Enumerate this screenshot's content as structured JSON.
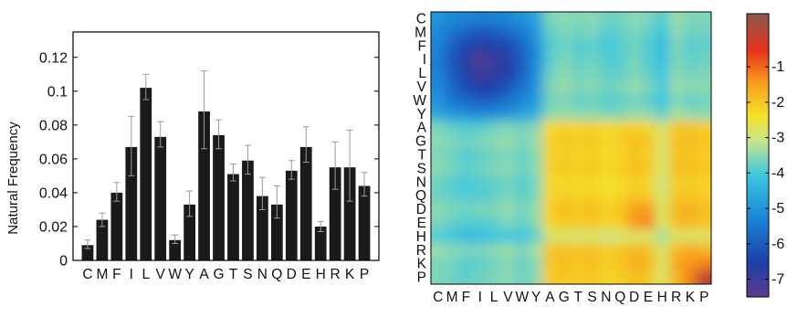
{
  "chart_data": [
    {
      "type": "bar",
      "ylabel": "Natural Frequency",
      "xlabel": "",
      "title": "",
      "ylim": [
        0,
        0.135
      ],
      "yticks": [
        "0",
        "0.02",
        "0.04",
        "0.06",
        "0.08",
        "0.1",
        "0.12"
      ],
      "categories": [
        "C",
        "M",
        "F",
        "I",
        "L",
        "V",
        "W",
        "Y",
        "A",
        "G",
        "T",
        "S",
        "N",
        "Q",
        "D",
        "E",
        "H",
        "R",
        "K",
        "P"
      ],
      "values": [
        0.009,
        0.024,
        0.04,
        0.067,
        0.102,
        0.073,
        0.012,
        0.033,
        0.088,
        0.074,
        0.051,
        0.059,
        0.038,
        0.033,
        0.053,
        0.067,
        0.02,
        0.055,
        0.055,
        0.044
      ],
      "error_low": [
        0.007,
        0.02,
        0.035,
        0.05,
        0.095,
        0.067,
        0.01,
        0.026,
        0.066,
        0.066,
        0.047,
        0.051,
        0.03,
        0.025,
        0.048,
        0.058,
        0.017,
        0.042,
        0.035,
        0.038
      ],
      "error_high": [
        0.012,
        0.028,
        0.046,
        0.085,
        0.11,
        0.082,
        0.015,
        0.041,
        0.112,
        0.083,
        0.057,
        0.068,
        0.049,
        0.044,
        0.059,
        0.079,
        0.023,
        0.07,
        0.077,
        0.052
      ],
      "grid": false,
      "bar_color": "#1a1a1a"
    },
    {
      "type": "heatmap",
      "rows": [
        "C",
        "M",
        "F",
        "I",
        "L",
        "V",
        "W",
        "Y",
        "A",
        "G",
        "T",
        "S",
        "N",
        "Q",
        "D",
        "E",
        "H",
        "R",
        "K",
        "P"
      ],
      "cols": [
        "C",
        "M",
        "F",
        "I",
        "L",
        "V",
        "W",
        "Y",
        "A",
        "G",
        "T",
        "S",
        "N",
        "Q",
        "D",
        "E",
        "H",
        "R",
        "K",
        "P"
      ],
      "colorbar": {
        "min": -7.5,
        "max": 0.5,
        "ticks": [
          "-1",
          "-2",
          "-3",
          "-4",
          "-5",
          "-6",
          "-7"
        ]
      },
      "colormap": "jet",
      "values": [
        [
          -5.0,
          -5.2,
          -5.3,
          -5.4,
          -5.3,
          -5.2,
          -5.0,
          -4.7,
          -3.6,
          -3.5,
          -3.6,
          -3.5,
          -3.7,
          -3.7,
          -3.5,
          -3.6,
          -3.9,
          -3.4,
          -3.6,
          -3.6
        ],
        [
          -5.2,
          -5.6,
          -5.9,
          -6.1,
          -6.0,
          -5.8,
          -5.5,
          -5.0,
          -3.8,
          -3.6,
          -3.7,
          -3.6,
          -3.9,
          -3.8,
          -3.6,
          -3.8,
          -4.1,
          -3.5,
          -3.7,
          -3.7
        ],
        [
          -5.3,
          -5.9,
          -6.4,
          -6.7,
          -6.6,
          -6.3,
          -5.8,
          -5.1,
          -3.9,
          -3.7,
          -3.9,
          -3.8,
          -4.0,
          -3.9,
          -3.7,
          -3.9,
          -4.3,
          -3.6,
          -3.9,
          -3.8
        ],
        [
          -5.4,
          -6.1,
          -6.7,
          -7.3,
          -7.0,
          -6.6,
          -6.0,
          -5.2,
          -3.9,
          -3.6,
          -3.8,
          -3.7,
          -3.9,
          -3.9,
          -3.6,
          -3.9,
          -4.2,
          -3.6,
          -3.8,
          -3.7
        ],
        [
          -5.3,
          -6.0,
          -6.6,
          -7.0,
          -6.9,
          -6.5,
          -5.9,
          -5.1,
          -3.7,
          -3.5,
          -3.7,
          -3.6,
          -3.8,
          -3.8,
          -3.6,
          -3.8,
          -4.1,
          -3.5,
          -3.7,
          -3.6
        ],
        [
          -5.2,
          -5.8,
          -6.3,
          -6.6,
          -6.5,
          -6.1,
          -5.6,
          -5.0,
          -3.6,
          -3.4,
          -3.6,
          -3.5,
          -3.7,
          -3.6,
          -3.4,
          -3.6,
          -4.0,
          -3.4,
          -3.5,
          -3.5
        ],
        [
          -5.0,
          -5.5,
          -5.8,
          -6.0,
          -5.9,
          -5.6,
          -5.3,
          -4.8,
          -3.7,
          -3.6,
          -3.8,
          -3.7,
          -3.9,
          -3.8,
          -3.7,
          -3.8,
          -4.1,
          -3.6,
          -3.8,
          -3.7
        ],
        [
          -4.7,
          -5.0,
          -5.1,
          -5.2,
          -5.1,
          -5.0,
          -4.8,
          -4.5,
          -3.5,
          -3.4,
          -3.5,
          -3.5,
          -3.6,
          -3.6,
          -3.4,
          -3.5,
          -3.8,
          -3.3,
          -3.5,
          -3.5
        ],
        [
          -3.6,
          -3.8,
          -3.9,
          -3.9,
          -3.7,
          -3.6,
          -3.7,
          -3.5,
          -2.3,
          -2.1,
          -2.2,
          -2.1,
          -2.3,
          -2.2,
          -2.1,
          -2.2,
          -2.9,
          -2.0,
          -2.0,
          -2.1
        ],
        [
          -3.5,
          -3.6,
          -3.7,
          -3.6,
          -3.5,
          -3.4,
          -3.6,
          -3.4,
          -2.1,
          -2.0,
          -2.1,
          -2.0,
          -2.2,
          -2.1,
          -1.9,
          -2.0,
          -2.8,
          -1.9,
          -1.9,
          -2.0
        ],
        [
          -3.6,
          -3.7,
          -3.9,
          -3.8,
          -3.7,
          -3.6,
          -3.8,
          -3.5,
          -2.2,
          -2.1,
          -2.2,
          -2.1,
          -2.3,
          -2.2,
          -2.0,
          -2.1,
          -2.9,
          -2.0,
          -2.0,
          -2.1
        ],
        [
          -3.5,
          -3.6,
          -3.8,
          -3.7,
          -3.6,
          -3.5,
          -3.7,
          -3.5,
          -2.1,
          -2.0,
          -2.1,
          -2.0,
          -2.2,
          -2.1,
          -1.9,
          -2.0,
          -2.8,
          -1.9,
          -1.9,
          -2.0
        ],
        [
          -3.7,
          -3.9,
          -4.0,
          -3.9,
          -3.8,
          -3.7,
          -3.9,
          -3.6,
          -2.3,
          -2.2,
          -2.3,
          -2.2,
          -2.4,
          -2.3,
          -2.1,
          -2.2,
          -3.0,
          -2.1,
          -2.1,
          -2.2
        ],
        [
          -3.7,
          -3.8,
          -3.9,
          -3.9,
          -3.8,
          -3.6,
          -3.8,
          -3.6,
          -2.2,
          -2.1,
          -2.2,
          -2.1,
          -2.3,
          -2.2,
          -2.0,
          -2.1,
          -2.9,
          -2.0,
          -2.0,
          -2.1
        ],
        [
          -3.5,
          -3.6,
          -3.7,
          -3.6,
          -3.6,
          -3.4,
          -3.7,
          -3.4,
          -2.1,
          -1.9,
          -2.0,
          -1.9,
          -2.1,
          -2.0,
          -1.5,
          -1.4,
          -2.8,
          -1.8,
          -1.7,
          -1.9
        ],
        [
          -3.6,
          -3.8,
          -3.9,
          -3.9,
          -3.8,
          -3.6,
          -3.8,
          -3.5,
          -2.2,
          -2.0,
          -2.1,
          -2.0,
          -2.2,
          -2.1,
          -1.4,
          -1.3,
          -2.8,
          -1.9,
          -1.8,
          -2.0
        ],
        [
          -3.9,
          -4.1,
          -4.3,
          -4.2,
          -4.1,
          -4.0,
          -4.1,
          -3.8,
          -2.9,
          -2.8,
          -2.9,
          -2.8,
          -3.0,
          -2.9,
          -2.8,
          -2.8,
          -3.3,
          -2.8,
          -2.8,
          -2.8
        ],
        [
          -3.4,
          -3.5,
          -3.6,
          -3.6,
          -3.5,
          -3.4,
          -3.6,
          -3.3,
          -2.0,
          -1.9,
          -2.0,
          -1.9,
          -2.1,
          -2.0,
          -1.8,
          -1.9,
          -2.8,
          -1.8,
          -1.6,
          -1.8
        ],
        [
          -3.6,
          -3.7,
          -3.9,
          -3.8,
          -3.7,
          -3.5,
          -3.8,
          -3.5,
          -2.0,
          -1.9,
          -2.0,
          -1.9,
          -2.1,
          -2.0,
          -1.7,
          -1.8,
          -2.8,
          -1.6,
          -1.4,
          -1.2
        ],
        [
          -3.6,
          -3.7,
          -3.8,
          -3.7,
          -3.6,
          -3.5,
          -3.7,
          -3.5,
          -2.1,
          -2.0,
          -2.1,
          -2.0,
          -2.2,
          -2.1,
          -1.9,
          -2.0,
          -2.8,
          -1.8,
          -1.2,
          0.0
        ]
      ]
    }
  ]
}
